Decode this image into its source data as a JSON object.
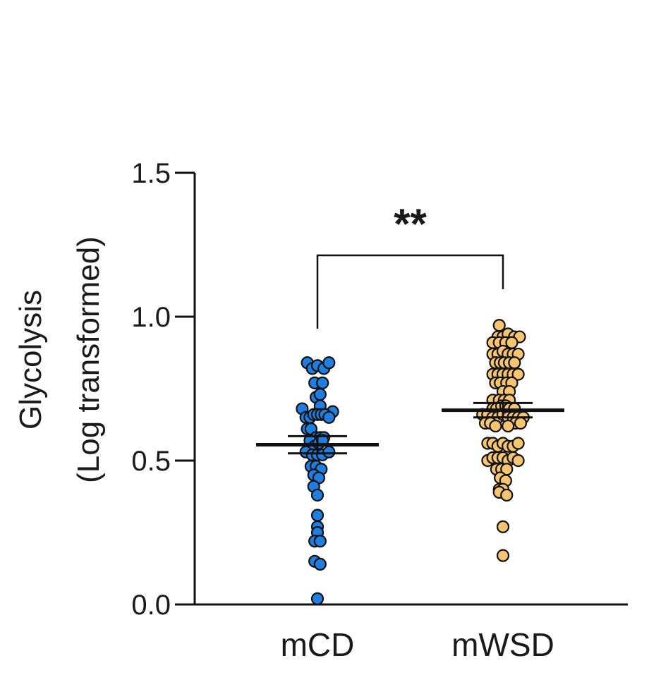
{
  "chart_data": {
    "type": "scatter",
    "subtype": "dot-plot-mean-sem",
    "ylabel_line1": "Glycolysis",
    "ylabel_line2": "(Log transformed)",
    "ylim": [
      0,
      1.5
    ],
    "yticks": [
      "0.0",
      "0.5",
      "1.0",
      "1.5"
    ],
    "yticks_values": [
      0,
      0.5,
      1.0,
      1.5
    ],
    "categories": [
      "mCD",
      "mWSD"
    ],
    "significance": "**",
    "grid": false,
    "series": [
      {
        "name": "mCD",
        "color": "#1f7fe0",
        "mean": 0.555,
        "sem": 0.03,
        "points": [
          {
            "dx": -0.3,
            "y": 0.84
          },
          {
            "dx": -0.15,
            "y": 0.82
          },
          {
            "dx": 0.0,
            "y": 0.83
          },
          {
            "dx": 0.19,
            "y": 0.82
          },
          {
            "dx": 0.34,
            "y": 0.84
          },
          {
            "dx": -0.08,
            "y": 0.77
          },
          {
            "dx": 0.15,
            "y": 0.77
          },
          {
            "dx": -0.04,
            "y": 0.72
          },
          {
            "dx": 0.08,
            "y": 0.73
          },
          {
            "dx": 0.08,
            "y": 0.69
          },
          {
            "dx": -0.45,
            "y": 0.68
          },
          {
            "dx": 0.45,
            "y": 0.67
          },
          {
            "dx": -0.34,
            "y": 0.65
          },
          {
            "dx": -0.22,
            "y": 0.65
          },
          {
            "dx": -0.11,
            "y": 0.66
          },
          {
            "dx": 0.0,
            "y": 0.66
          },
          {
            "dx": 0.11,
            "y": 0.66
          },
          {
            "dx": 0.22,
            "y": 0.66
          },
          {
            "dx": 0.34,
            "y": 0.65
          },
          {
            "dx": -0.3,
            "y": 0.61
          },
          {
            "dx": -0.19,
            "y": 0.61
          },
          {
            "dx": -0.04,
            "y": 0.58
          },
          {
            "dx": 0.08,
            "y": 0.58
          },
          {
            "dx": 0.19,
            "y": 0.58
          },
          {
            "dx": -0.22,
            "y": 0.57
          },
          {
            "dx": -0.08,
            "y": 0.55
          },
          {
            "dx": 0.04,
            "y": 0.56
          },
          {
            "dx": 0.15,
            "y": 0.57
          },
          {
            "dx": -0.34,
            "y": 0.53
          },
          {
            "dx": -0.15,
            "y": 0.52
          },
          {
            "dx": 0.0,
            "y": 0.52
          },
          {
            "dx": 0.15,
            "y": 0.52
          },
          {
            "dx": 0.34,
            "y": 0.53
          },
          {
            "dx": -0.19,
            "y": 0.48
          },
          {
            "dx": -0.04,
            "y": 0.48
          },
          {
            "dx": 0.11,
            "y": 0.47
          },
          {
            "dx": -0.11,
            "y": 0.45
          },
          {
            "dx": 0.04,
            "y": 0.44
          },
          {
            "dx": -0.11,
            "y": 0.41
          },
          {
            "dx": 0.0,
            "y": 0.38
          },
          {
            "dx": 0.0,
            "y": 0.31
          },
          {
            "dx": 0.0,
            "y": 0.27
          },
          {
            "dx": 0.0,
            "y": 0.25
          },
          {
            "dx": -0.08,
            "y": 0.22
          },
          {
            "dx": 0.08,
            "y": 0.22
          },
          {
            "dx": -0.08,
            "y": 0.15
          },
          {
            "dx": 0.08,
            "y": 0.14
          },
          {
            "dx": 0.0,
            "y": 0.02
          }
        ]
      },
      {
        "name": "mWSD",
        "color": "#f6c56f",
        "mean": 0.675,
        "sem": 0.025,
        "points": [
          {
            "dx": -0.11,
            "y": 0.97
          },
          {
            "dx": -0.15,
            "y": 0.93
          },
          {
            "dx": 0.0,
            "y": 0.93
          },
          {
            "dx": 0.15,
            "y": 0.94
          },
          {
            "dx": 0.34,
            "y": 0.93
          },
          {
            "dx": 0.49,
            "y": 0.93
          },
          {
            "dx": -0.3,
            "y": 0.91
          },
          {
            "dx": -0.11,
            "y": 0.91
          },
          {
            "dx": 0.08,
            "y": 0.91
          },
          {
            "dx": 0.26,
            "y": 0.91
          },
          {
            "dx": -0.3,
            "y": 0.87
          },
          {
            "dx": -0.15,
            "y": 0.87
          },
          {
            "dx": 0.0,
            "y": 0.88
          },
          {
            "dx": 0.15,
            "y": 0.87
          },
          {
            "dx": 0.3,
            "y": 0.87
          },
          {
            "dx": 0.45,
            "y": 0.87
          },
          {
            "dx": -0.22,
            "y": 0.84
          },
          {
            "dx": -0.08,
            "y": 0.84
          },
          {
            "dx": 0.04,
            "y": 0.84
          },
          {
            "dx": 0.19,
            "y": 0.84
          },
          {
            "dx": 0.34,
            "y": 0.84
          },
          {
            "dx": -0.3,
            "y": 0.8
          },
          {
            "dx": -0.15,
            "y": 0.8
          },
          {
            "dx": 0.0,
            "y": 0.8
          },
          {
            "dx": 0.15,
            "y": 0.8
          },
          {
            "dx": 0.3,
            "y": 0.8
          },
          {
            "dx": 0.45,
            "y": 0.8
          },
          {
            "dx": -0.22,
            "y": 0.77
          },
          {
            "dx": -0.08,
            "y": 0.77
          },
          {
            "dx": 0.11,
            "y": 0.77
          },
          {
            "dx": 0.26,
            "y": 0.77
          },
          {
            "dx": 0.0,
            "y": 0.74
          },
          {
            "dx": 0.19,
            "y": 0.74
          },
          {
            "dx": -0.3,
            "y": 0.71
          },
          {
            "dx": -0.11,
            "y": 0.71
          },
          {
            "dx": 0.04,
            "y": 0.71
          },
          {
            "dx": 0.19,
            "y": 0.71
          },
          {
            "dx": -0.3,
            "y": 0.68
          },
          {
            "dx": -0.19,
            "y": 0.68
          },
          {
            "dx": -0.04,
            "y": 0.69
          },
          {
            "dx": 0.08,
            "y": 0.69
          },
          {
            "dx": 0.19,
            "y": 0.68
          },
          {
            "dx": 0.34,
            "y": 0.68
          },
          {
            "dx": -0.6,
            "y": 0.66
          },
          {
            "dx": -0.45,
            "y": 0.66
          },
          {
            "dx": -0.3,
            "y": 0.65
          },
          {
            "dx": -0.15,
            "y": 0.65
          },
          {
            "dx": 0.0,
            "y": 0.66
          },
          {
            "dx": 0.15,
            "y": 0.65
          },
          {
            "dx": 0.3,
            "y": 0.65
          },
          {
            "dx": 0.45,
            "y": 0.65
          },
          {
            "dx": 0.6,
            "y": 0.65
          },
          {
            "dx": -0.52,
            "y": 0.63
          },
          {
            "dx": -0.37,
            "y": 0.63
          },
          {
            "dx": 0.37,
            "y": 0.63
          },
          {
            "dx": 0.52,
            "y": 0.63
          },
          {
            "dx": -0.22,
            "y": 0.62
          },
          {
            "dx": 0.15,
            "y": 0.62
          },
          {
            "dx": -0.45,
            "y": 0.56
          },
          {
            "dx": -0.3,
            "y": 0.56
          },
          {
            "dx": -0.15,
            "y": 0.55
          },
          {
            "dx": 0.0,
            "y": 0.56
          },
          {
            "dx": 0.15,
            "y": 0.55
          },
          {
            "dx": 0.3,
            "y": 0.55
          },
          {
            "dx": 0.45,
            "y": 0.56
          },
          {
            "dx": -0.45,
            "y": 0.5
          },
          {
            "dx": -0.3,
            "y": 0.51
          },
          {
            "dx": -0.15,
            "y": 0.51
          },
          {
            "dx": 0.0,
            "y": 0.51
          },
          {
            "dx": 0.15,
            "y": 0.5
          },
          {
            "dx": 0.3,
            "y": 0.51
          },
          {
            "dx": 0.45,
            "y": 0.5
          },
          {
            "dx": -0.19,
            "y": 0.47
          },
          {
            "dx": -0.04,
            "y": 0.47
          },
          {
            "dx": 0.11,
            "y": 0.47
          },
          {
            "dx": -0.08,
            "y": 0.44
          },
          {
            "dx": 0.08,
            "y": 0.43
          },
          {
            "dx": -0.11,
            "y": 0.4
          },
          {
            "dx": 0.0,
            "y": 0.4
          },
          {
            "dx": -0.11,
            "y": 0.39
          },
          {
            "dx": 0.11,
            "y": 0.38
          },
          {
            "dx": 0.0,
            "y": 0.27
          },
          {
            "dx": 0.0,
            "y": 0.17
          }
        ]
      }
    ]
  }
}
